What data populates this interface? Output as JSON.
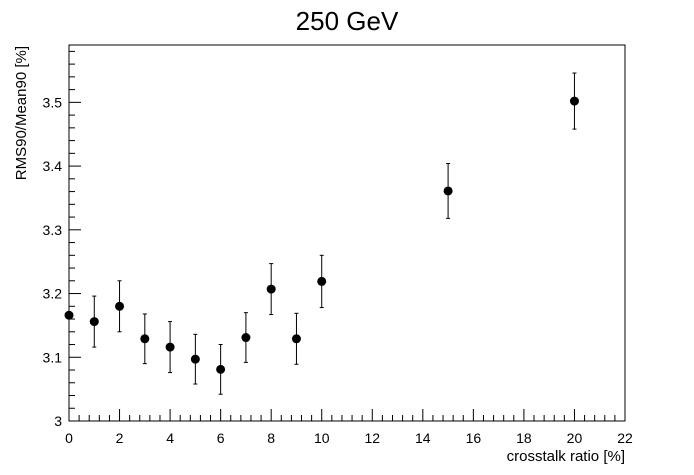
{
  "chart_data": {
    "type": "scatter",
    "title": "250 GeV",
    "xlabel": "crosstalk ratio [%]",
    "ylabel": "RMS90/Mean90 [%]",
    "xlim": [
      0,
      22
    ],
    "ylim": [
      3.0,
      3.59
    ],
    "x_ticks": [
      0,
      2,
      4,
      6,
      8,
      10,
      12,
      14,
      16,
      18,
      20,
      22
    ],
    "y_ticks": [
      3.0,
      3.1,
      3.2,
      3.3,
      3.4,
      3.5
    ],
    "x_tick_labels": [
      "0",
      "2",
      "4",
      "6",
      "8",
      "10",
      "12",
      "14",
      "16",
      "18",
      "20",
      "22"
    ],
    "y_tick_labels": [
      "3",
      "3.1",
      "3.2",
      "3.3",
      "3.4",
      "3.5"
    ],
    "grid": false,
    "series": [
      {
        "points": [
          {
            "x": 0,
            "y": 3.166,
            "err": 0.0
          },
          {
            "x": 1,
            "y": 3.156,
            "err": 0.04
          },
          {
            "x": 2,
            "y": 3.18,
            "err": 0.04
          },
          {
            "x": 3,
            "y": 3.129,
            "err": 0.039
          },
          {
            "x": 4,
            "y": 3.116,
            "err": 0.04
          },
          {
            "x": 5,
            "y": 3.097,
            "err": 0.039
          },
          {
            "x": 6,
            "y": 3.081,
            "err": 0.039
          },
          {
            "x": 7,
            "y": 3.131,
            "err": 0.039
          },
          {
            "x": 8,
            "y": 3.207,
            "err": 0.04
          },
          {
            "x": 9,
            "y": 3.129,
            "err": 0.04
          },
          {
            "x": 10,
            "y": 3.219,
            "err": 0.041
          },
          {
            "x": 15,
            "y": 3.361,
            "err": 0.043
          },
          {
            "x": 20,
            "y": 3.502,
            "err": 0.044
          }
        ]
      }
    ]
  }
}
